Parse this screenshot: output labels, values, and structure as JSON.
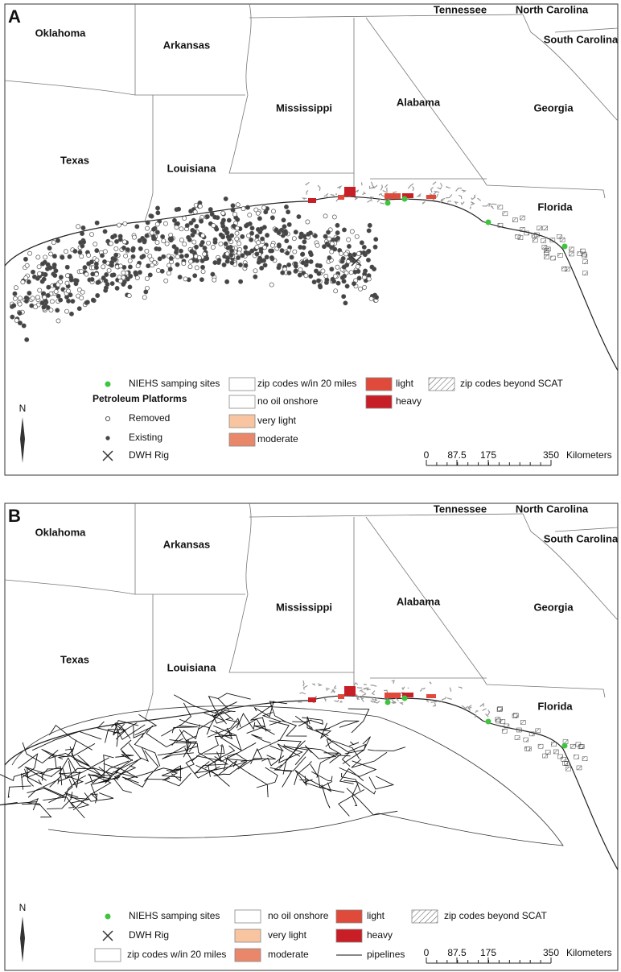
{
  "panels": [
    {
      "label": "A",
      "states": [
        "Oklahoma",
        "Arkansas",
        "Texas",
        "Louisiana",
        "Mississippi",
        "Alabama",
        "Tennessee",
        "North Carolina",
        "South Carolina",
        "Georgia",
        "Florida"
      ],
      "legend": [
        "NIEHS samping sites",
        "Petroleum Platforms",
        "Removed",
        "Existing",
        "DWH Rig",
        "zip codes w/in 20 miles",
        "no oil onshore",
        "very light",
        "moderate",
        "light",
        "heavy",
        "zip codes beyond SCAT"
      ],
      "north": "N",
      "scale_bar": {
        "ticks": [
          "0",
          "87.5",
          "175",
          "350"
        ],
        "unit": "Kilometers"
      }
    },
    {
      "label": "B",
      "states": [
        "Oklahoma",
        "Arkansas",
        "Texas",
        "Louisiana",
        "Mississippi",
        "Alabama",
        "Tennessee",
        "North Carolina",
        "South Carolina",
        "Georgia",
        "Florida"
      ],
      "legend": [
        "NIEHS samping sites",
        "DWH Rig",
        "zip codes w/in 20 miles",
        "no oil onshore",
        "very light",
        "moderate",
        "pipelines",
        "light",
        "heavy",
        "zip codes beyond SCAT"
      ],
      "north": "N",
      "scale_bar": {
        "ticks": [
          "0",
          "87.5",
          "175",
          "350"
        ],
        "unit": "Kilometers"
      }
    }
  ]
}
